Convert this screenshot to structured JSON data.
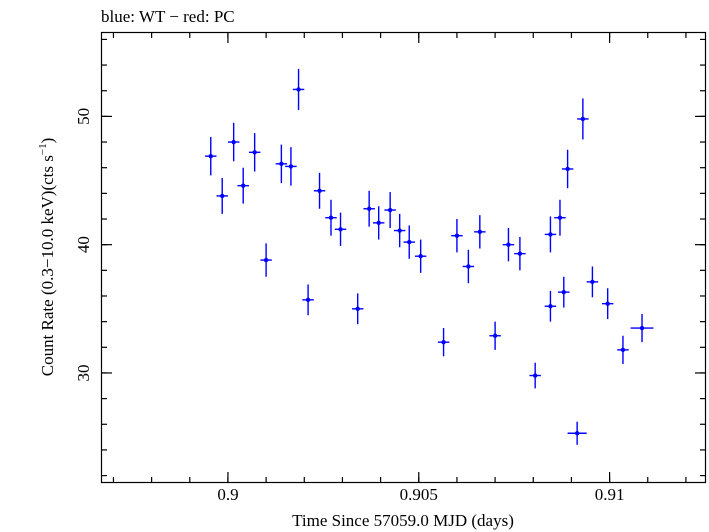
{
  "chart_data": {
    "type": "scatter",
    "title": "blue: WT − red: PC",
    "xlabel": "Time Since 57059.0 MJD (days)",
    "ylabel_main": "Count Rate (0.3−10.0 keV)(cts s",
    "ylabel_sup": "−1",
    "ylabel_end": ")",
    "xlim": [
      0.8967,
      0.9125
    ],
    "ylim": [
      21.5,
      56.5
    ],
    "xticks_major": [
      0.9,
      0.905,
      0.91
    ],
    "xtick_labels": [
      "0.9",
      "0.905",
      "0.91"
    ],
    "xticks_minor_step": 0.001,
    "yticks_major": [
      30,
      40,
      50
    ],
    "ytick_labels": [
      "30",
      "40",
      "50"
    ],
    "yticks_minor_step": 2,
    "grid": false,
    "series": [
      {
        "color": "#0000ff",
        "points": [
          {
            "x": 0.90845,
            "y": 40.8,
            "xerr": 0.00015,
            "yerr": 1.4
          },
          {
            "x": 0.9087,
            "y": 42.1,
            "xerr": 0.00015,
            "yerr": 1.4
          },
          {
            "x": 0.9089,
            "y": 45.9,
            "xerr": 0.00015,
            "yerr": 1.5
          },
          {
            "x": 0.9093,
            "y": 49.8,
            "xerr": 0.00015,
            "yerr": 1.6
          },
          {
            "x": 0.89955,
            "y": 46.9,
            "xerr": 0.00015,
            "yerr": 1.5
          },
          {
            "x": 0.89985,
            "y": 43.8,
            "xerr": 0.00015,
            "yerr": 1.4
          },
          {
            "x": 0.90015,
            "y": 48.0,
            "xerr": 0.00015,
            "yerr": 1.5
          },
          {
            "x": 0.9004,
            "y": 44.6,
            "xerr": 0.00015,
            "yerr": 1.4
          },
          {
            "x": 0.9007,
            "y": 47.2,
            "xerr": 0.00015,
            "yerr": 1.5
          },
          {
            "x": 0.901,
            "y": 38.8,
            "xerr": 0.00015,
            "yerr": 1.3
          },
          {
            "x": 0.9014,
            "y": 46.3,
            "xerr": 0.00015,
            "yerr": 1.5
          },
          {
            "x": 0.90165,
            "y": 46.1,
            "xerr": 0.00015,
            "yerr": 1.5
          },
          {
            "x": 0.90185,
            "y": 52.1,
            "xerr": 0.00015,
            "yerr": 1.6
          },
          {
            "x": 0.9021,
            "y": 35.7,
            "xerr": 0.00015,
            "yerr": 1.2
          },
          {
            "x": 0.9024,
            "y": 44.2,
            "xerr": 0.00015,
            "yerr": 1.4
          },
          {
            "x": 0.9027,
            "y": 42.1,
            "xerr": 0.00015,
            "yerr": 1.4
          },
          {
            "x": 0.90295,
            "y": 41.2,
            "xerr": 0.00015,
            "yerr": 1.3
          },
          {
            "x": 0.9034,
            "y": 35.0,
            "xerr": 0.00015,
            "yerr": 1.2
          },
          {
            "x": 0.9037,
            "y": 42.8,
            "xerr": 0.00015,
            "yerr": 1.4
          },
          {
            "x": 0.90395,
            "y": 41.7,
            "xerr": 0.00015,
            "yerr": 1.3
          },
          {
            "x": 0.90425,
            "y": 42.7,
            "xerr": 0.00015,
            "yerr": 1.4
          },
          {
            "x": 0.9045,
            "y": 41.1,
            "xerr": 0.00015,
            "yerr": 1.3
          },
          {
            "x": 0.90475,
            "y": 40.2,
            "xerr": 0.00015,
            "yerr": 1.3
          },
          {
            "x": 0.90505,
            "y": 39.1,
            "xerr": 0.00015,
            "yerr": 1.3
          },
          {
            "x": 0.90565,
            "y": 32.4,
            "xerr": 0.00015,
            "yerr": 1.1
          },
          {
            "x": 0.906,
            "y": 40.7,
            "xerr": 0.00015,
            "yerr": 1.3
          },
          {
            "x": 0.9063,
            "y": 38.3,
            "xerr": 0.00015,
            "yerr": 1.3
          },
          {
            "x": 0.9066,
            "y": 41.0,
            "xerr": 0.00015,
            "yerr": 1.3
          },
          {
            "x": 0.907,
            "y": 32.9,
            "xerr": 0.00015,
            "yerr": 1.1
          },
          {
            "x": 0.90735,
            "y": 40.0,
            "xerr": 0.00015,
            "yerr": 1.3
          },
          {
            "x": 0.90765,
            "y": 39.3,
            "xerr": 0.00015,
            "yerr": 1.3
          },
          {
            "x": 0.90805,
            "y": 29.8,
            "xerr": 0.00015,
            "yerr": 1.0
          },
          {
            "x": 0.90845,
            "y": 35.2,
            "xerr": 0.00015,
            "yerr": 1.2
          },
          {
            "x": 0.9088,
            "y": 36.3,
            "xerr": 0.00015,
            "yerr": 1.2
          },
          {
            "x": 0.90915,
            "y": 25.3,
            "xerr": 0.00025,
            "yerr": 0.9
          },
          {
            "x": 0.90955,
            "y": 37.1,
            "xerr": 0.00015,
            "yerr": 1.2
          },
          {
            "x": 0.90995,
            "y": 35.4,
            "xerr": 0.00015,
            "yerr": 1.2
          },
          {
            "x": 0.91035,
            "y": 31.8,
            "xerr": 0.00015,
            "yerr": 1.1
          },
          {
            "x": 0.91085,
            "y": 33.5,
            "xerr": 0.0003,
            "yerr": 1.1
          }
        ]
      }
    ]
  }
}
